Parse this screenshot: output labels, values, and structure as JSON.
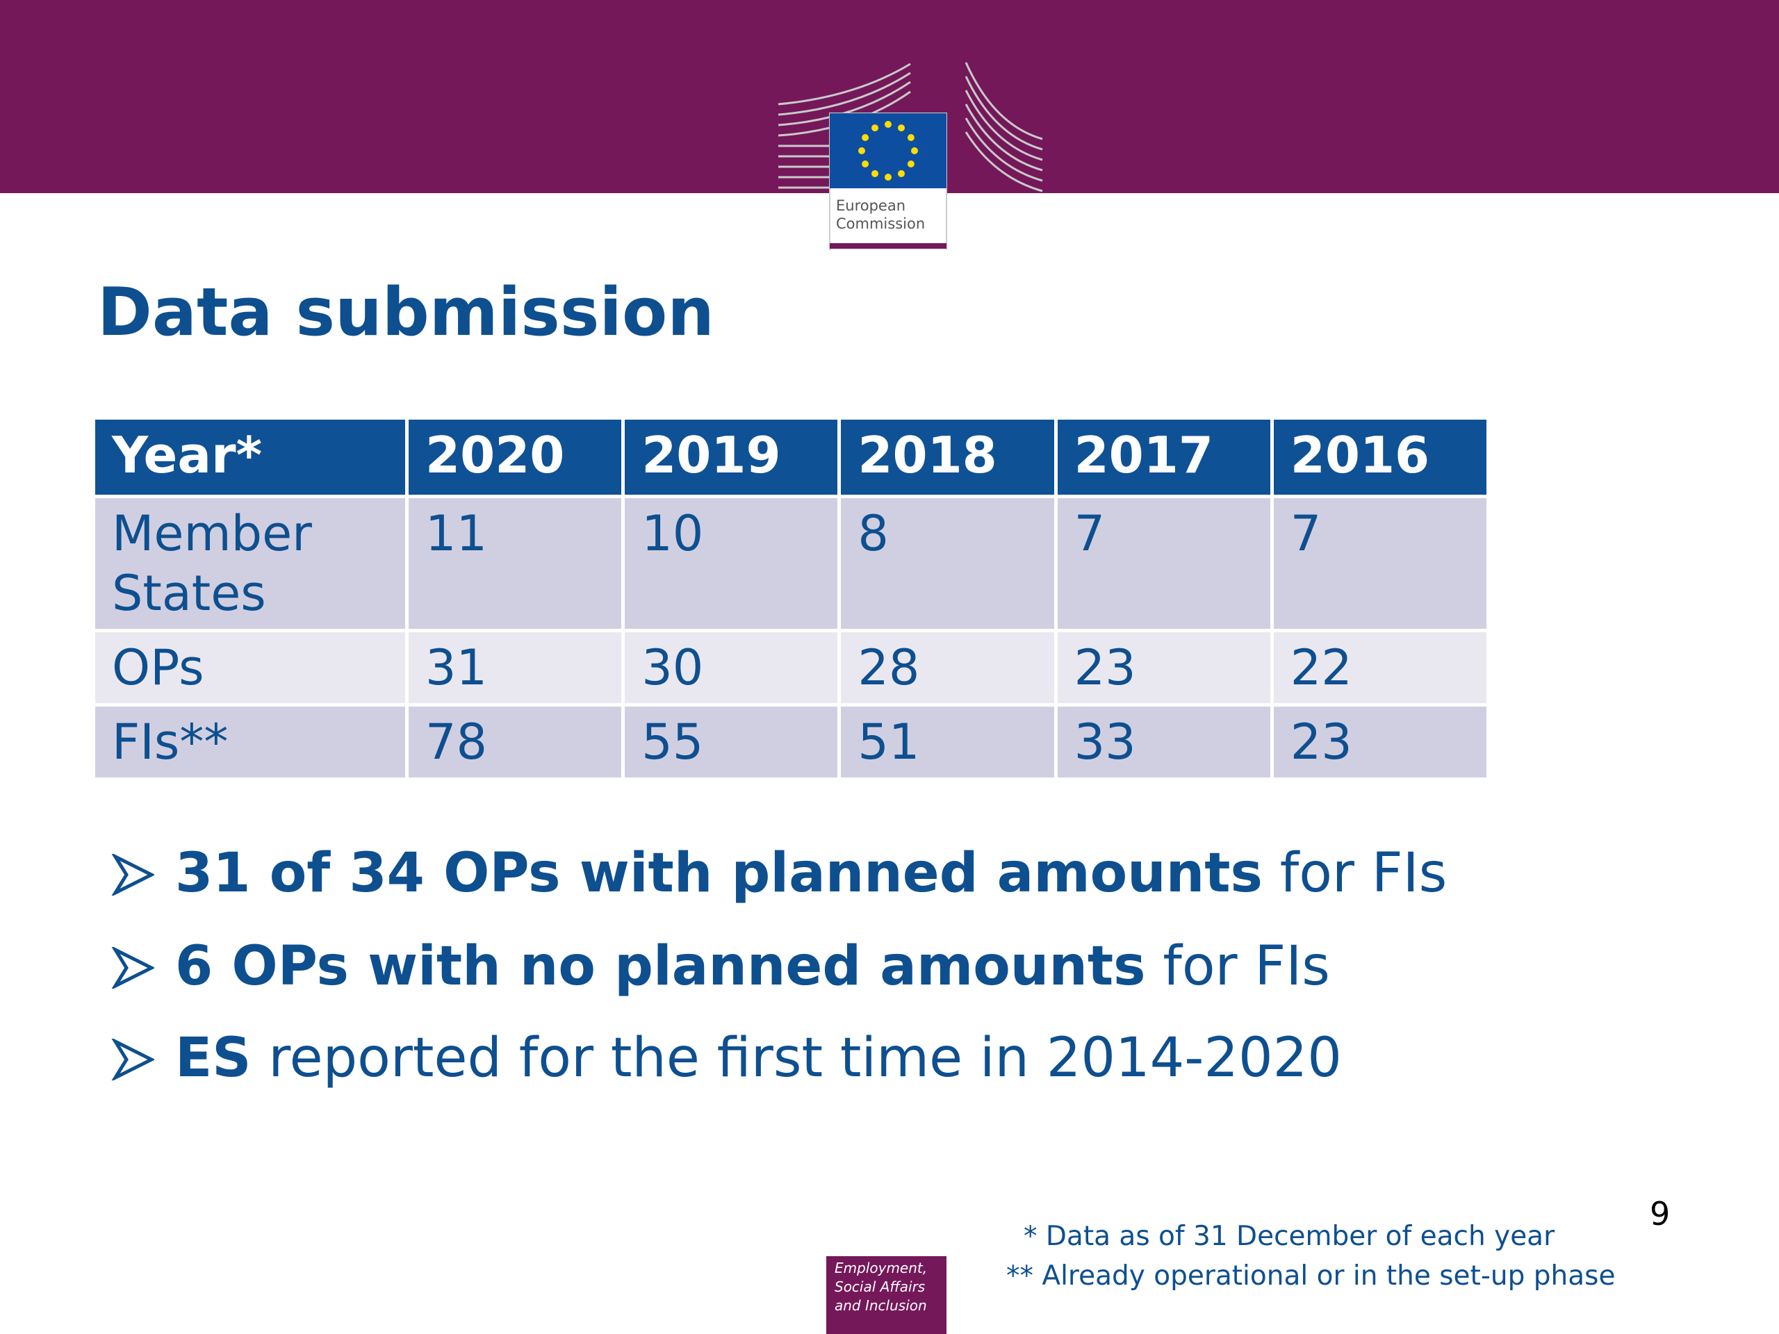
{
  "header": {
    "logo_text": [
      "European",
      "Commission"
    ]
  },
  "title": "Data submission",
  "table": {
    "header": [
      "Year*",
      "2020",
      "2019",
      "2018",
      "2017",
      "2016"
    ],
    "rows": [
      [
        "Member States",
        11,
        10,
        8,
        7,
        7
      ],
      [
        "OPs",
        31,
        30,
        28,
        23,
        22
      ],
      [
        "FIs**",
        78,
        55,
        51,
        33,
        23
      ]
    ]
  },
  "bullets": [
    {
      "bold": "31 of 34 OPs with planned amounts",
      "text": " for FIs"
    },
    {
      "bold": "6 OPs with no planned amounts",
      "text": " for FIs"
    },
    {
      "bold": "ES",
      "text": " reported for the first time in 2014-2020"
    }
  ],
  "footnotes": [
    "* Data as of 31 December of each year",
    "** Already operational or in the set-up phase"
  ],
  "page_number": 9,
  "footer": {
    "logo_text": [
      "Employment,",
      "Social Affairs",
      "and Inclusion"
    ]
  }
}
